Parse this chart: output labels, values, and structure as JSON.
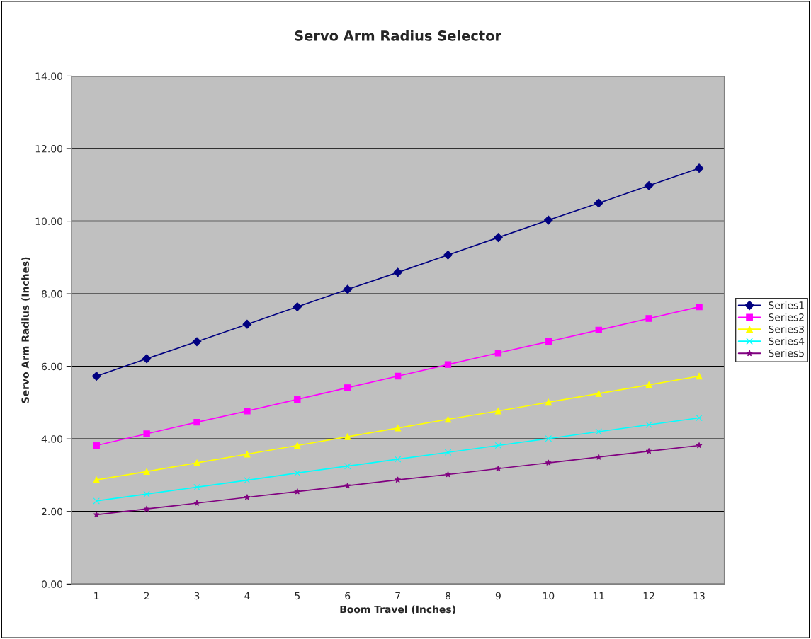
{
  "chart_data": {
    "type": "line",
    "title": "Servo Arm Radius Selector",
    "xlabel": "Boom Travel (Inches)",
    "ylabel": "Servo Arm Radius (Inches)",
    "categories": [
      "1",
      "2",
      "3",
      "4",
      "5",
      "6",
      "7",
      "8",
      "9",
      "10",
      "11",
      "12",
      "13"
    ],
    "series": [
      {
        "name": "Series1",
        "color": "#000080",
        "marker": "diamond",
        "values": [
          5.73,
          6.21,
          6.68,
          7.16,
          7.64,
          8.12,
          8.59,
          9.07,
          9.55,
          10.03,
          10.5,
          10.98,
          11.46
        ]
      },
      {
        "name": "Series2",
        "color": "#ff00ff",
        "marker": "square",
        "values": [
          3.82,
          4.14,
          4.46,
          4.77,
          5.09,
          5.41,
          5.73,
          6.05,
          6.37,
          6.68,
          7.0,
          7.32,
          7.64
        ]
      },
      {
        "name": "Series3",
        "color": "#ffff00",
        "marker": "triangle",
        "values": [
          2.87,
          3.1,
          3.34,
          3.58,
          3.82,
          4.06,
          4.3,
          4.54,
          4.77,
          5.01,
          5.25,
          5.49,
          5.73
        ]
      },
      {
        "name": "Series4",
        "color": "#00ffff",
        "marker": "cross",
        "values": [
          2.29,
          2.48,
          2.67,
          2.86,
          3.06,
          3.25,
          3.44,
          3.63,
          3.82,
          4.01,
          4.2,
          4.39,
          4.58
        ]
      },
      {
        "name": "Series5",
        "color": "#800080",
        "marker": "star",
        "values": [
          1.91,
          2.07,
          2.23,
          2.39,
          2.55,
          2.71,
          2.87,
          3.02,
          3.18,
          3.34,
          3.5,
          3.66,
          3.82
        ]
      }
    ],
    "ylim": [
      0,
      14
    ],
    "yticks": [
      {
        "value": 0,
        "label": "0.00"
      },
      {
        "value": 2,
        "label": "2.00"
      },
      {
        "value": 4,
        "label": "4.00"
      },
      {
        "value": 6,
        "label": "6.00"
      },
      {
        "value": 8,
        "label": "8.00"
      },
      {
        "value": 10,
        "label": "10.00"
      },
      {
        "value": 12,
        "label": "12.00"
      },
      {
        "value": 14,
        "label": "14.00"
      }
    ],
    "grid": "y",
    "legend": "right",
    "line_style": "solid"
  }
}
